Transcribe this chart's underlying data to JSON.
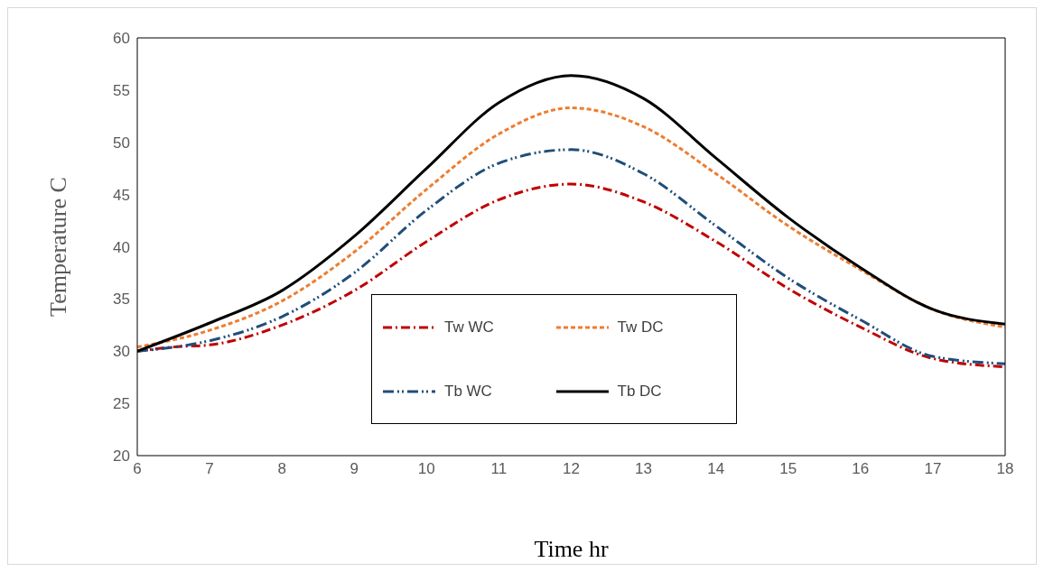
{
  "chart_data": {
    "type": "line",
    "xlabel": "Time hr",
    "ylabel": "Temperature C",
    "xlim": [
      6,
      18
    ],
    "xticks": [
      6,
      7,
      8,
      9,
      10,
      11,
      12,
      13,
      14,
      15,
      16,
      17,
      18
    ],
    "ylim": [
      20,
      60
    ],
    "yticks": [
      20,
      25,
      30,
      35,
      40,
      45,
      50,
      55,
      60
    ],
    "legend": "bottom",
    "marker": "none",
    "series": [
      {
        "name": "Tw WC",
        "color": "#c00000",
        "line_style": "dashed",
        "x": [
          6,
          6.5,
          7,
          8,
          9,
          10,
          11,
          12,
          13,
          14,
          15,
          16,
          17,
          18
        ],
        "values": [
          30,
          30.4,
          30.6,
          32.5,
          35.8,
          40.5,
          44.5,
          46,
          44.3,
          40.5,
          36,
          32.3,
          29.3,
          28.5
        ]
      },
      {
        "name": "Tw DC",
        "color": "#ed7d31",
        "line_style": "dashed",
        "x": [
          6,
          7,
          8,
          9,
          10,
          11,
          12,
          13,
          14,
          15,
          16,
          17,
          18
        ],
        "values": [
          30.4,
          32,
          34.8,
          39.5,
          45.5,
          50.8,
          53.3,
          51.5,
          47,
          42,
          37.8,
          34,
          32.3
        ]
      },
      {
        "name": "Tb WC",
        "color": "#1f4e79",
        "line_style": "dashed",
        "x": [
          6,
          7,
          8,
          9,
          10,
          11,
          12,
          13,
          14,
          15,
          16,
          17,
          18
        ],
        "values": [
          30,
          31,
          33.3,
          37.5,
          43.5,
          48,
          49.3,
          47,
          42,
          37,
          33,
          29.5,
          28.8
        ]
      },
      {
        "name": "Tb DC",
        "color": "#000000",
        "line_style": "solid",
        "x": [
          6,
          7,
          8,
          9,
          10,
          11,
          12,
          13,
          14,
          15,
          16,
          17,
          18
        ],
        "values": [
          30,
          32.7,
          35.8,
          41,
          47.5,
          53.8,
          56.4,
          54.2,
          48.5,
          42.8,
          38,
          34,
          32.6
        ]
      }
    ]
  }
}
